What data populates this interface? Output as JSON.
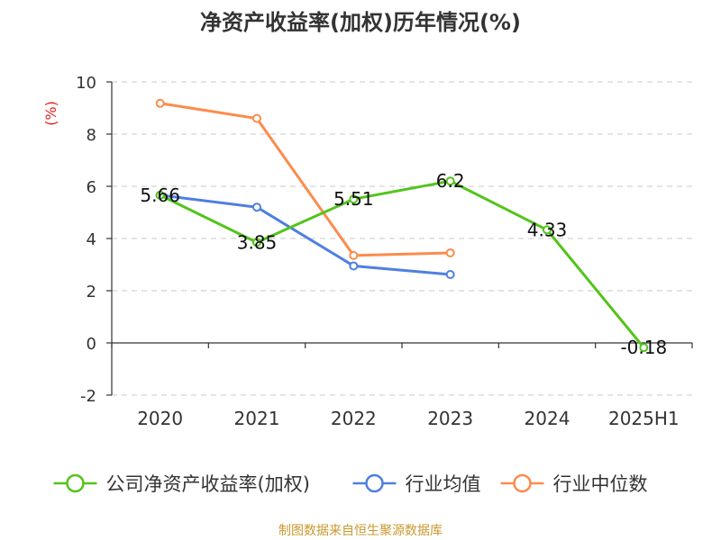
{
  "title": "净资产收益率(加权)历年情况(%)",
  "source": "制图数据来自恒生聚源数据库",
  "colors": {
    "company": "#52c41a",
    "industry_avg": "#4e7fe0",
    "industry_median": "#fb8c4d",
    "unit_label": "#e02020",
    "source_text": "#c8992f"
  },
  "chart_data": {
    "type": "line",
    "title": "净资产收益率(加权)历年情况(%)",
    "xlabel": "",
    "ylabel": "(%)",
    "categories": [
      "2020",
      "2021",
      "2022",
      "2023",
      "2024",
      "2025H1"
    ],
    "ylim": [
      -2,
      10
    ],
    "yticks": [
      -2,
      0,
      2,
      4,
      6,
      8,
      10
    ],
    "ytick_labels": [
      "-2",
      "0",
      "2",
      "4",
      "6",
      "8",
      "10"
    ],
    "grid": true,
    "legend_position": "bottom",
    "series": [
      {
        "name": "公司净资产收益率(加权)",
        "color_key": "company",
        "values": [
          5.66,
          3.85,
          5.51,
          6.2,
          4.33,
          -0.18
        ],
        "labels": [
          "5.66",
          "3.85",
          "5.51",
          "6.2",
          "4.33",
          "-0.18"
        ]
      },
      {
        "name": "行业均值",
        "color_key": "industry_avg",
        "values": [
          5.66,
          5.2,
          2.95,
          2.62,
          null,
          null
        ]
      },
      {
        "name": "行业中位数",
        "color_key": "industry_median",
        "values": [
          9.18,
          8.6,
          3.35,
          3.45,
          null,
          null
        ]
      }
    ]
  }
}
